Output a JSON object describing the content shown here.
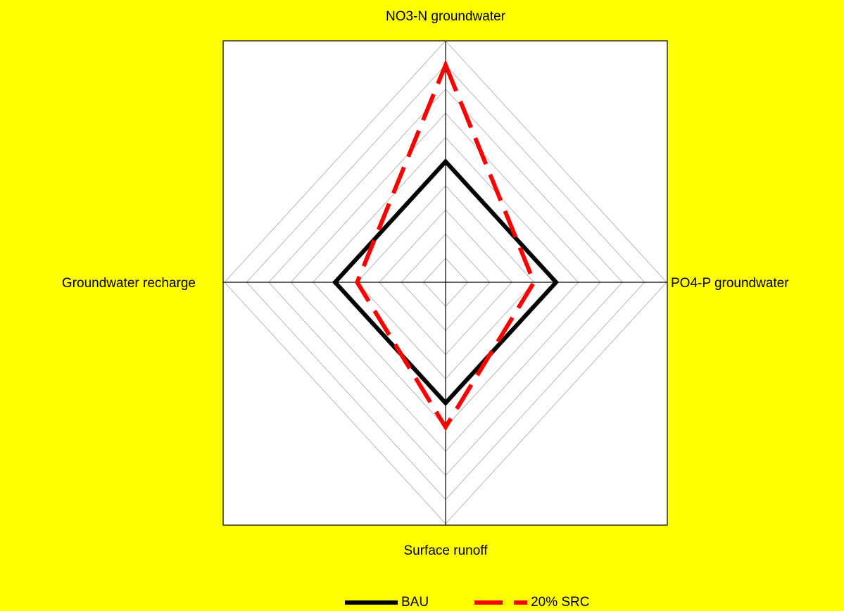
{
  "chart_data": {
    "type": "radar",
    "categories": [
      "NO3-N groundwater",
      "PO4-P groundwater",
      "Surface runoff",
      "Groundwater recharge"
    ],
    "series": [
      {
        "name": "BAU",
        "color": "#000000",
        "values": [
          5,
          5,
          5,
          5
        ]
      },
      {
        "name": "20% SRC",
        "color": "#ff0000",
        "values": [
          9,
          4,
          6,
          4
        ]
      }
    ],
    "ylim": [
      0,
      10
    ],
    "yticks": [
      1,
      2,
      3,
      4,
      5,
      6,
      7,
      8,
      9,
      10
    ],
    "grid": true,
    "legend": "bottom"
  }
}
